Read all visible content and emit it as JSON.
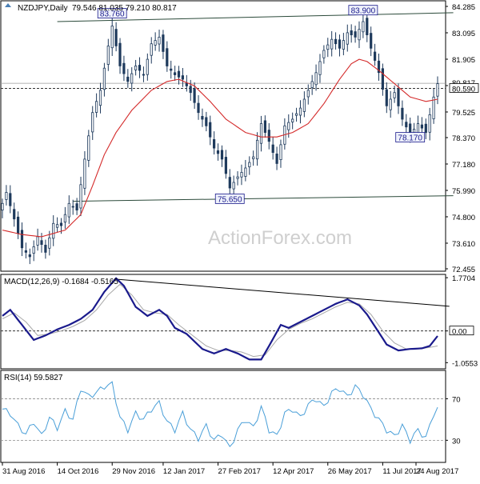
{
  "chart_data": {
    "type": "line",
    "watermark": "ActionForex.com",
    "x_ticks": [
      "31 Aug 2016",
      "14 Oct 2016",
      "29 Nov 2016",
      "12 Jan 2017",
      "27 Feb 2017",
      "12 Apr 2017",
      "26 May 2017",
      "11 Jul 2017",
      "24 Aug 2017"
    ],
    "price_panel": {
      "header": {
        "symbol": "NZDJPY,Daily",
        "ohlc": "79.546 81.035 79.210 80.817"
      },
      "ylim": [
        72.455,
        84.285
      ],
      "y_ticks": [
        "84.285",
        "83.095",
        "81.905",
        "80.715",
        "79.525",
        "78.370",
        "77.180",
        "75.990",
        "74.800",
        "73.610",
        "72.455"
      ],
      "last_price": "80.817",
      "dashed_level": "80.590",
      "annotations": [
        {
          "label": "83.760",
          "x_index": 28,
          "price": 83.76
        },
        {
          "label": "83.900",
          "x_index": 92,
          "price": 83.9
        },
        {
          "label": "75.650",
          "x_index": 58,
          "price": 75.65
        },
        {
          "label": "78.170",
          "x_index": 104,
          "price": 78.17
        }
      ],
      "trendlines": [
        {
          "from": {
            "x_index": 14,
            "price": 83.6
          },
          "to": {
            "x_index": 115,
            "price": 84.0
          }
        },
        {
          "from": {
            "x_index": 18,
            "price": 75.5
          },
          "to": {
            "x_index": 115,
            "price": 75.75
          }
        }
      ],
      "close_anchors": [
        {
          "x_index": 0,
          "close": 75.4
        },
        {
          "x_index": 1,
          "close": 75.9
        },
        {
          "x_index": 3,
          "close": 74.7
        },
        {
          "x_index": 5,
          "close": 73.4
        },
        {
          "x_index": 7,
          "close": 73.0
        },
        {
          "x_index": 9,
          "close": 73.9
        },
        {
          "x_index": 11,
          "close": 73.2
        },
        {
          "x_index": 13,
          "close": 74.5
        },
        {
          "x_index": 15,
          "close": 74.4
        },
        {
          "x_index": 17,
          "close": 75.4
        },
        {
          "x_index": 19,
          "close": 75.1
        },
        {
          "x_index": 21,
          "close": 77.4
        },
        {
          "x_index": 23,
          "close": 79.5
        },
        {
          "x_index": 25,
          "close": 80.5
        },
        {
          "x_index": 27,
          "close": 82.5
        },
        {
          "x_index": 28,
          "close": 83.4
        },
        {
          "x_index": 30,
          "close": 81.6
        },
        {
          "x_index": 32,
          "close": 80.9
        },
        {
          "x_index": 34,
          "close": 81.6
        },
        {
          "x_index": 36,
          "close": 81.2
        },
        {
          "x_index": 38,
          "close": 82.6
        },
        {
          "x_index": 40,
          "close": 82.9
        },
        {
          "x_index": 42,
          "close": 81.6
        },
        {
          "x_index": 44,
          "close": 81.2
        },
        {
          "x_index": 46,
          "close": 81.0
        },
        {
          "x_index": 48,
          "close": 80.4
        },
        {
          "x_index": 50,
          "close": 79.5
        },
        {
          "x_index": 52,
          "close": 78.9
        },
        {
          "x_index": 54,
          "close": 77.9
        },
        {
          "x_index": 56,
          "close": 77.4
        },
        {
          "x_index": 58,
          "close": 76.1
        },
        {
          "x_index": 60,
          "close": 76.6
        },
        {
          "x_index": 62,
          "close": 77.0
        },
        {
          "x_index": 64,
          "close": 77.5
        },
        {
          "x_index": 66,
          "close": 79.0
        },
        {
          "x_index": 68,
          "close": 78.2
        },
        {
          "x_index": 70,
          "close": 77.2
        },
        {
          "x_index": 72,
          "close": 78.9
        },
        {
          "x_index": 74,
          "close": 79.2
        },
        {
          "x_index": 76,
          "close": 79.7
        },
        {
          "x_index": 78,
          "close": 80.5
        },
        {
          "x_index": 80,
          "close": 81.3
        },
        {
          "x_index": 82,
          "close": 82.3
        },
        {
          "x_index": 84,
          "close": 82.8
        },
        {
          "x_index": 86,
          "close": 82.4
        },
        {
          "x_index": 88,
          "close": 83.1
        },
        {
          "x_index": 90,
          "close": 82.9
        },
        {
          "x_index": 92,
          "close": 83.6
        },
        {
          "x_index": 94,
          "close": 82.4
        },
        {
          "x_index": 96,
          "close": 81.3
        },
        {
          "x_index": 98,
          "close": 79.8
        },
        {
          "x_index": 100,
          "close": 80.4
        },
        {
          "x_index": 102,
          "close": 79.2
        },
        {
          "x_index": 104,
          "close": 78.5
        },
        {
          "x_index": 106,
          "close": 79.0
        },
        {
          "x_index": 108,
          "close": 78.6
        },
        {
          "x_index": 110,
          "close": 80.2
        },
        {
          "x_index": 111,
          "close": 80.8
        }
      ],
      "ma_anchors": [
        {
          "x_index": 0,
          "value": 74.2
        },
        {
          "x_index": 5,
          "value": 74.0
        },
        {
          "x_index": 10,
          "value": 73.9
        },
        {
          "x_index": 16,
          "value": 74.2
        },
        {
          "x_index": 20,
          "value": 74.9
        },
        {
          "x_index": 23,
          "value": 76.2
        },
        {
          "x_index": 26,
          "value": 77.6
        },
        {
          "x_index": 29,
          "value": 78.6
        },
        {
          "x_index": 33,
          "value": 79.6
        },
        {
          "x_index": 38,
          "value": 80.5
        },
        {
          "x_index": 42,
          "value": 80.9
        },
        {
          "x_index": 45,
          "value": 81.0
        },
        {
          "x_index": 49,
          "value": 80.7
        },
        {
          "x_index": 53,
          "value": 80.0
        },
        {
          "x_index": 57,
          "value": 79.2
        },
        {
          "x_index": 62,
          "value": 78.6
        },
        {
          "x_index": 66,
          "value": 78.4
        },
        {
          "x_index": 70,
          "value": 78.4
        },
        {
          "x_index": 74,
          "value": 78.6
        },
        {
          "x_index": 78,
          "value": 79.0
        },
        {
          "x_index": 82,
          "value": 79.9
        },
        {
          "x_index": 86,
          "value": 81.0
        },
        {
          "x_index": 89,
          "value": 81.7
        },
        {
          "x_index": 91,
          "value": 81.9
        },
        {
          "x_index": 93,
          "value": 81.8
        },
        {
          "x_index": 96,
          "value": 81.4
        },
        {
          "x_index": 100,
          "value": 80.8
        },
        {
          "x_index": 104,
          "value": 80.2
        },
        {
          "x_index": 108,
          "value": 80.0
        },
        {
          "x_index": 111,
          "value": 80.1
        }
      ]
    },
    "macd_panel": {
      "header": "MACD(12,26,9) -0.1684 -0.5165",
      "ylim": [
        -1.18,
        1.8
      ],
      "y_ticks": [
        "1.7704",
        "0.00",
        "-1.0553"
      ],
      "level_tag": "0.00",
      "trendline": {
        "from": {
          "x_index": 29,
          "value": 1.72
        },
        "to": {
          "x_index": 114,
          "value": 0.82
        }
      },
      "macd_anchors": [
        {
          "x_index": 0,
          "value": 0.5
        },
        {
          "x_index": 2,
          "value": 0.7
        },
        {
          "x_index": 5,
          "value": 0.2
        },
        {
          "x_index": 8,
          "value": -0.3
        },
        {
          "x_index": 11,
          "value": -0.15
        },
        {
          "x_index": 14,
          "value": 0.05
        },
        {
          "x_index": 17,
          "value": 0.2
        },
        {
          "x_index": 20,
          "value": 0.4
        },
        {
          "x_index": 23,
          "value": 0.7
        },
        {
          "x_index": 26,
          "value": 1.3
        },
        {
          "x_index": 29,
          "value": 1.75
        },
        {
          "x_index": 31,
          "value": 1.5
        },
        {
          "x_index": 34,
          "value": 0.8
        },
        {
          "x_index": 37,
          "value": 0.5
        },
        {
          "x_index": 40,
          "value": 0.7
        },
        {
          "x_index": 42,
          "value": 0.5
        },
        {
          "x_index": 44,
          "value": 0.1
        },
        {
          "x_index": 47,
          "value": -0.1
        },
        {
          "x_index": 51,
          "value": -0.6
        },
        {
          "x_index": 54,
          "value": -0.75
        },
        {
          "x_index": 57,
          "value": -0.6
        },
        {
          "x_index": 60,
          "value": -0.75
        },
        {
          "x_index": 63,
          "value": -0.95
        },
        {
          "x_index": 66,
          "value": -0.95
        },
        {
          "x_index": 68,
          "value": -0.5
        },
        {
          "x_index": 71,
          "value": 0.2
        },
        {
          "x_index": 73,
          "value": 0.1
        },
        {
          "x_index": 76,
          "value": 0.3
        },
        {
          "x_index": 79,
          "value": 0.5
        },
        {
          "x_index": 82,
          "value": 0.7
        },
        {
          "x_index": 85,
          "value": 0.9
        },
        {
          "x_index": 88,
          "value": 1.05
        },
        {
          "x_index": 91,
          "value": 0.85
        },
        {
          "x_index": 93,
          "value": 0.55
        },
        {
          "x_index": 96,
          "value": -0.05
        },
        {
          "x_index": 98,
          "value": -0.45
        },
        {
          "x_index": 101,
          "value": -0.65
        },
        {
          "x_index": 104,
          "value": -0.6
        },
        {
          "x_index": 107,
          "value": -0.58
        },
        {
          "x_index": 109,
          "value": -0.5
        },
        {
          "x_index": 111,
          "value": -0.17
        }
      ],
      "signal_anchors": [
        {
          "x_index": 0,
          "value": 0.4
        },
        {
          "x_index": 3,
          "value": 0.6
        },
        {
          "x_index": 6,
          "value": 0.3
        },
        {
          "x_index": 9,
          "value": -0.15
        },
        {
          "x_index": 12,
          "value": -0.1
        },
        {
          "x_index": 15,
          "value": 0.0
        },
        {
          "x_index": 18,
          "value": 0.15
        },
        {
          "x_index": 21,
          "value": 0.35
        },
        {
          "x_index": 24,
          "value": 0.7
        },
        {
          "x_index": 27,
          "value": 1.2
        },
        {
          "x_index": 30,
          "value": 1.55
        },
        {
          "x_index": 33,
          "value": 1.2
        },
        {
          "x_index": 36,
          "value": 0.7
        },
        {
          "x_index": 39,
          "value": 0.6
        },
        {
          "x_index": 42,
          "value": 0.55
        },
        {
          "x_index": 45,
          "value": 0.2
        },
        {
          "x_index": 48,
          "value": -0.1
        },
        {
          "x_index": 52,
          "value": -0.5
        },
        {
          "x_index": 55,
          "value": -0.65
        },
        {
          "x_index": 58,
          "value": -0.65
        },
        {
          "x_index": 61,
          "value": -0.7
        },
        {
          "x_index": 64,
          "value": -0.85
        },
        {
          "x_index": 67,
          "value": -0.8
        },
        {
          "x_index": 70,
          "value": -0.3
        },
        {
          "x_index": 73,
          "value": 0.05
        },
        {
          "x_index": 76,
          "value": 0.25
        },
        {
          "x_index": 79,
          "value": 0.4
        },
        {
          "x_index": 82,
          "value": 0.6
        },
        {
          "x_index": 85,
          "value": 0.8
        },
        {
          "x_index": 88,
          "value": 0.95
        },
        {
          "x_index": 91,
          "value": 0.9
        },
        {
          "x_index": 94,
          "value": 0.55
        },
        {
          "x_index": 97,
          "value": 0.0
        },
        {
          "x_index": 100,
          "value": -0.4
        },
        {
          "x_index": 103,
          "value": -0.6
        },
        {
          "x_index": 106,
          "value": -0.6
        },
        {
          "x_index": 109,
          "value": -0.55
        },
        {
          "x_index": 111,
          "value": -0.5
        }
      ]
    },
    "rsi_panel": {
      "header": "RSI(14) 59.5827",
      "ylim": [
        11,
        95
      ],
      "y_ticks": [
        "70",
        "30"
      ],
      "levels": [
        70,
        30
      ],
      "rsi_anchors": [
        {
          "x_index": 0,
          "value": 60
        },
        {
          "x_index": 2,
          "value": 56
        },
        {
          "x_index": 4,
          "value": 44
        },
        {
          "x_index": 6,
          "value": 36
        },
        {
          "x_index": 8,
          "value": 48
        },
        {
          "x_index": 10,
          "value": 34
        },
        {
          "x_index": 12,
          "value": 52
        },
        {
          "x_index": 14,
          "value": 42
        },
        {
          "x_index": 16,
          "value": 58
        },
        {
          "x_index": 18,
          "value": 50
        },
        {
          "x_index": 20,
          "value": 80
        },
        {
          "x_index": 22,
          "value": 72
        },
        {
          "x_index": 24,
          "value": 76
        },
        {
          "x_index": 26,
          "value": 82
        },
        {
          "x_index": 28,
          "value": 84
        },
        {
          "x_index": 30,
          "value": 52
        },
        {
          "x_index": 32,
          "value": 40
        },
        {
          "x_index": 34,
          "value": 56
        },
        {
          "x_index": 36,
          "value": 50
        },
        {
          "x_index": 38,
          "value": 60
        },
        {
          "x_index": 40,
          "value": 66
        },
        {
          "x_index": 42,
          "value": 48
        },
        {
          "x_index": 44,
          "value": 40
        },
        {
          "x_index": 46,
          "value": 56
        },
        {
          "x_index": 48,
          "value": 40
        },
        {
          "x_index": 50,
          "value": 32
        },
        {
          "x_index": 52,
          "value": 44
        },
        {
          "x_index": 54,
          "value": 30
        },
        {
          "x_index": 56,
          "value": 36
        },
        {
          "x_index": 58,
          "value": 22
        },
        {
          "x_index": 60,
          "value": 40
        },
        {
          "x_index": 62,
          "value": 50
        },
        {
          "x_index": 64,
          "value": 42
        },
        {
          "x_index": 66,
          "value": 62
        },
        {
          "x_index": 68,
          "value": 40
        },
        {
          "x_index": 70,
          "value": 34
        },
        {
          "x_index": 72,
          "value": 56
        },
        {
          "x_index": 74,
          "value": 60
        },
        {
          "x_index": 76,
          "value": 52
        },
        {
          "x_index": 78,
          "value": 64
        },
        {
          "x_index": 80,
          "value": 70
        },
        {
          "x_index": 82,
          "value": 62
        },
        {
          "x_index": 84,
          "value": 76
        },
        {
          "x_index": 86,
          "value": 80
        },
        {
          "x_index": 88,
          "value": 72
        },
        {
          "x_index": 90,
          "value": 82
        },
        {
          "x_index": 92,
          "value": 74
        },
        {
          "x_index": 94,
          "value": 60
        },
        {
          "x_index": 96,
          "value": 50
        },
        {
          "x_index": 98,
          "value": 40
        },
        {
          "x_index": 100,
          "value": 34
        },
        {
          "x_index": 102,
          "value": 44
        },
        {
          "x_index": 104,
          "value": 30
        },
        {
          "x_index": 106,
          "value": 40
        },
        {
          "x_index": 108,
          "value": 32
        },
        {
          "x_index": 110,
          "value": 56
        },
        {
          "x_index": 111,
          "value": 60
        }
      ]
    },
    "colors": {
      "bull": "#ffffff",
      "bear": "#1e3a5c",
      "candle_outline": "#1e3a5c",
      "ma": "#d42a2a",
      "macd": "#1a1a8c",
      "signal": "#a8a8a8",
      "rsi": "#4a9fd8",
      "tag_bg": "#eef1fb",
      "watermark": "#cfcfcf"
    }
  }
}
